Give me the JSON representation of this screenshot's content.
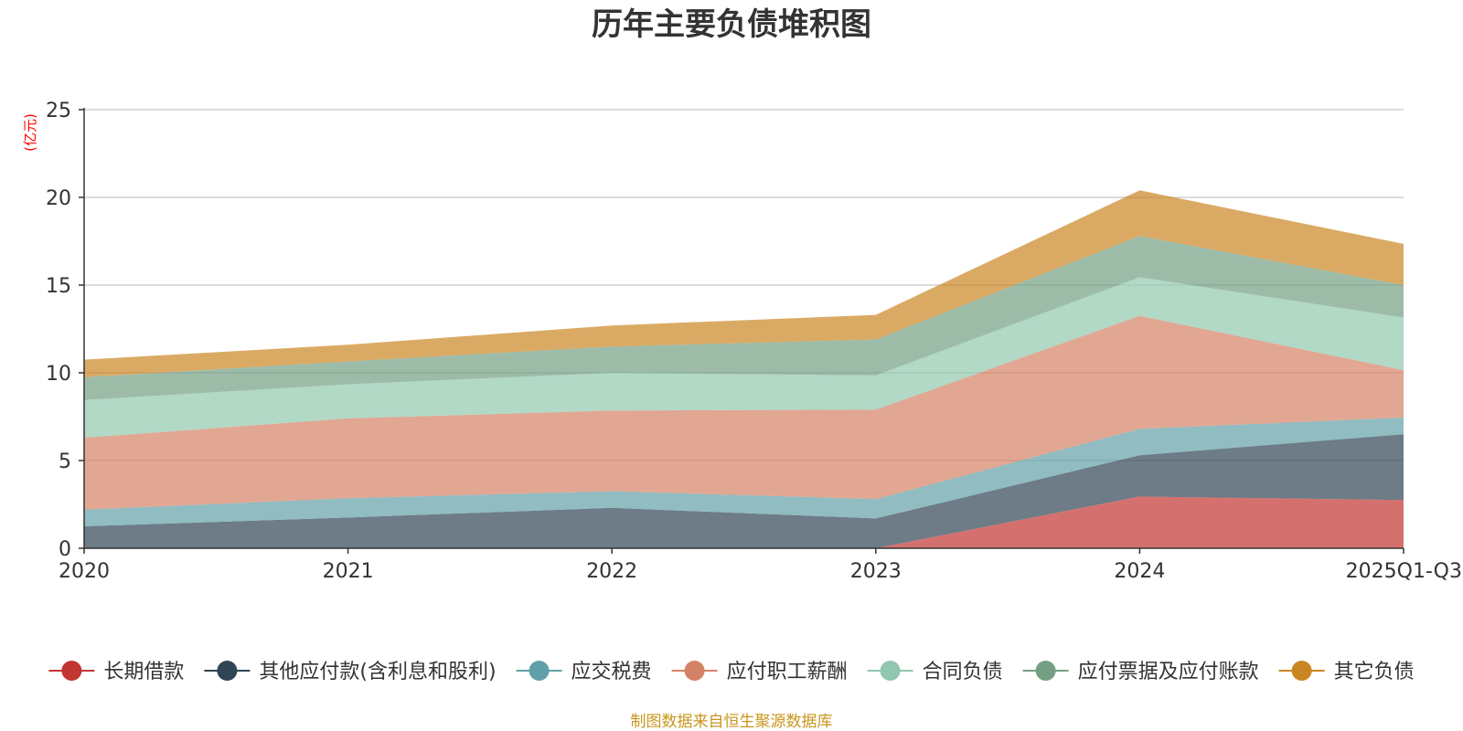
{
  "chart_data": {
    "type": "area",
    "stacked": true,
    "title": "历年主要负债堆积图",
    "ylabel": "(亿元)",
    "xlabel": "",
    "ylim": [
      0,
      25
    ],
    "yticks": [
      0,
      5,
      10,
      15,
      20,
      25
    ],
    "categories": [
      "2020",
      "2021",
      "2022",
      "2023",
      "2024",
      "2025Q1-Q3"
    ],
    "grid": true,
    "legend_position": "bottom",
    "series": [
      {
        "name": "长期借款",
        "color": "#c23531",
        "values": [
          0,
          0,
          0,
          0,
          2.95,
          2.75
        ]
      },
      {
        "name": "其他应付款(含利息和股利)",
        "color": "#2f4554",
        "values": [
          1.25,
          1.75,
          2.3,
          1.7,
          2.35,
          3.75
        ]
      },
      {
        "name": "应交税费",
        "color": "#61a0a8",
        "values": [
          0.95,
          1.1,
          0.95,
          1.1,
          1.5,
          0.95
        ]
      },
      {
        "name": "应付职工薪酬",
        "color": "#d48265",
        "values": [
          4.1,
          4.55,
          4.6,
          5.1,
          6.45,
          2.7
        ]
      },
      {
        "name": "合同负债",
        "color": "#91c7ae",
        "values": [
          2.15,
          1.95,
          2.15,
          1.95,
          2.2,
          3.0
        ]
      },
      {
        "name": "应付票据及应付账款",
        "color": "#749f83",
        "values": [
          1.3,
          1.3,
          1.5,
          2.05,
          2.35,
          1.85
        ]
      },
      {
        "name": "其它负债",
        "color": "#ca8622",
        "values": [
          1.0,
          0.95,
          1.2,
          1.4,
          2.6,
          2.35
        ]
      }
    ],
    "source_note": "制图数据来自恒生聚源数据库"
  }
}
